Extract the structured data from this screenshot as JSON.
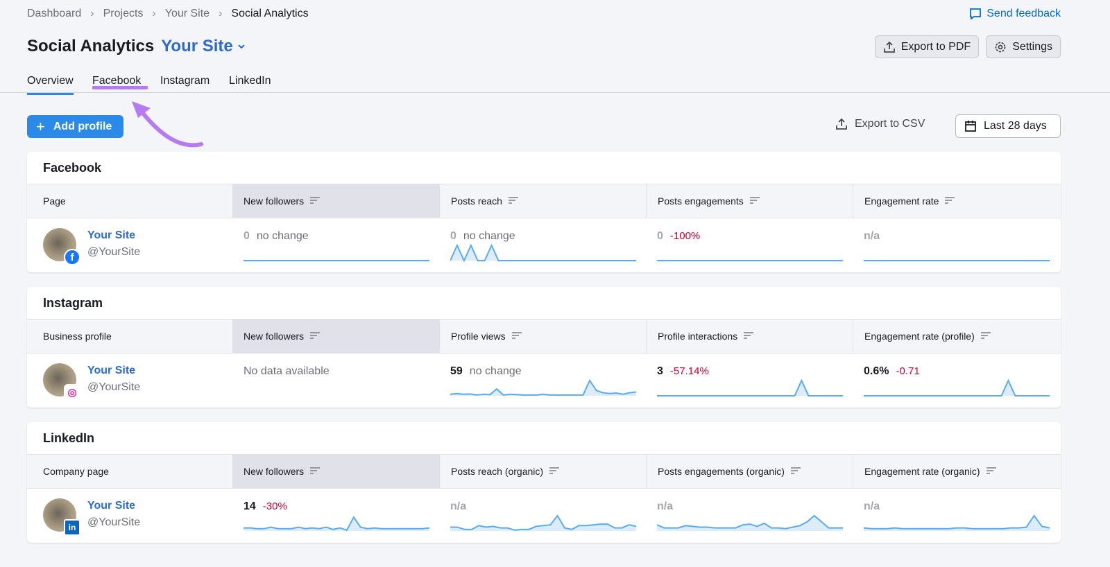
{
  "breadcrumb": [
    "Dashboard",
    "Projects",
    "Your Site",
    "Social Analytics"
  ],
  "feedback": "Send feedback",
  "header": {
    "title": "Social Analytics",
    "site": "Your Site",
    "export_pdf": "Export to PDF",
    "settings": "Settings"
  },
  "tabs": [
    {
      "label": "Overview",
      "active": true
    },
    {
      "label": "Facebook",
      "highlighted": true
    },
    {
      "label": "Instagram"
    },
    {
      "label": "LinkedIn"
    }
  ],
  "toolbar": {
    "add_profile": "Add profile",
    "export_csv": "Export to CSV",
    "period": "Last 28 days"
  },
  "colors": {
    "accent": "#2b89e8",
    "link": "#2b6bd0",
    "negative": "#d1002f",
    "highlight": "#b57cf2",
    "facebook": "#1877f2",
    "linkedin": "#0a66c2",
    "instagram": "#d6249f"
  },
  "cards": [
    {
      "title": "Facebook",
      "network": "facebook",
      "columns": [
        "Page",
        "New followers",
        "Posts reach",
        "Posts engagements",
        "Engagement rate"
      ],
      "profile": {
        "name": "Your Site",
        "handle": "@YourSite"
      },
      "cells": [
        {
          "value": "0",
          "muted": true,
          "change": "no change",
          "spark": [
            0,
            0,
            0,
            0,
            0,
            0,
            0,
            0,
            0,
            0
          ]
        },
        {
          "value": "0",
          "muted": true,
          "change": "no change",
          "spark": [
            0,
            1,
            0,
            1,
            0,
            0,
            1,
            0,
            0,
            0,
            0,
            0,
            0,
            0,
            0,
            0,
            0,
            0,
            0,
            0,
            0,
            0,
            0,
            0,
            0,
            0,
            0,
            0
          ]
        },
        {
          "value": "0",
          "muted": true,
          "change": "-100%",
          "negative": true,
          "spark": [
            0,
            0,
            0,
            0,
            0,
            0,
            0,
            0,
            0,
            0
          ]
        },
        {
          "value": "n/a",
          "muted": true,
          "change": "",
          "spark": [
            0,
            0,
            0,
            0,
            0,
            0,
            0,
            0,
            0,
            0
          ]
        }
      ]
    },
    {
      "title": "Instagram",
      "network": "instagram",
      "columns": [
        "Business profile",
        "New followers",
        "Profile views",
        "Profile interactions",
        "Engagement rate (profile)"
      ],
      "profile": {
        "name": "Your Site",
        "handle": "@YourSite"
      },
      "cells": [
        {
          "nodata": "No data available"
        },
        {
          "value": "59",
          "change": "no change",
          "spark": [
            0.1,
            0.15,
            0.1,
            0.12,
            0.05,
            0.1,
            0.08,
            0.45,
            0.05,
            0.1,
            0.08,
            0.05,
            0.05,
            0.05,
            0.1,
            0.05,
            0.05,
            0.05,
            0.05,
            0.05,
            0.05,
            1,
            0.35,
            0.2,
            0.15,
            0.18,
            0.1,
            0.2,
            0.25
          ]
        },
        {
          "value": "3",
          "change": "-57.14%",
          "negative": true,
          "spark": [
            0,
            0,
            0,
            0,
            0,
            0,
            0,
            0,
            0,
            0,
            0,
            0,
            0,
            0,
            0,
            0,
            0,
            0,
            0,
            0,
            0,
            1,
            0,
            0,
            0,
            0,
            0,
            0
          ]
        },
        {
          "value": "0.6%",
          "change": "-0.71",
          "negative": true,
          "spark": [
            0,
            0,
            0,
            0,
            0,
            0,
            0,
            0,
            0,
            0,
            0,
            0,
            0,
            0,
            0,
            0,
            0,
            0,
            0,
            0,
            0,
            1,
            0,
            0,
            0,
            0,
            0,
            0
          ]
        }
      ]
    },
    {
      "title": "LinkedIn",
      "network": "linkedin",
      "columns": [
        "Company page",
        "New followers",
        "Posts reach (organic)",
        "Posts engagements (organic)",
        "Engagement rate (organic)"
      ],
      "profile": {
        "name": "Your Site",
        "handle": "@YourSite"
      },
      "cells": [
        {
          "value": "14",
          "change": "-30%",
          "negative": true,
          "spark": [
            0.2,
            0.2,
            0.15,
            0.15,
            0.25,
            0.15,
            0.15,
            0.15,
            0.25,
            0.15,
            0.2,
            0.15,
            0.25,
            0.1,
            0.2,
            0.05,
            0.9,
            0.25,
            0.15,
            0.2,
            0.15,
            0.15,
            0.15,
            0.15,
            0.15,
            0.15,
            0.15,
            0.2
          ]
        },
        {
          "value": "n/a",
          "muted": true,
          "spark": [
            0.25,
            0.25,
            0.1,
            0.1,
            0.35,
            0.25,
            0.3,
            0.2,
            0.2,
            0.05,
            0.1,
            0.1,
            0.3,
            0.35,
            0.4,
            1,
            0.2,
            0.1,
            0.35,
            0.35,
            0.4,
            0.45,
            0.45,
            0.2,
            0.2,
            0.4,
            0.3
          ]
        },
        {
          "value": "n/a",
          "muted": true,
          "spark": [
            0.4,
            0.2,
            0.2,
            0.2,
            0.35,
            0.3,
            0.25,
            0.25,
            0.2,
            0.2,
            0.2,
            0.2,
            0.4,
            0.45,
            0.3,
            0.5,
            0.2,
            0.2,
            0.15,
            0.25,
            0.35,
            0.6,
            1,
            0.6,
            0.2,
            0.2,
            0.2
          ]
        },
        {
          "value": "n/a",
          "muted": true,
          "spark": [
            0.2,
            0.15,
            0.15,
            0.15,
            0.2,
            0.15,
            0.15,
            0.15,
            0.15,
            0.15,
            0.15,
            0.15,
            0.2,
            0.2,
            0.15,
            0.15,
            0.15,
            0.15,
            0.15,
            0.2,
            0.2,
            0.25,
            1,
            0.3,
            0.2
          ]
        }
      ]
    }
  ]
}
